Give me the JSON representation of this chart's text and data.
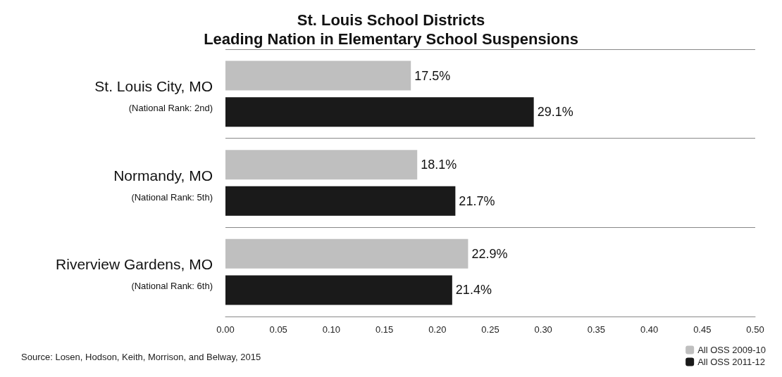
{
  "chart_data": {
    "type": "bar",
    "orientation": "horizontal",
    "title": "St. Louis School Districts\nLeading Nation in Elementary School Suspensions",
    "categories": [
      "St. Louis City, MO\n(National Rank: 2nd)",
      "Normandy, MO\n(National Rank: 5th)",
      "Riverview Gardens, MO\n(National Rank: 6th)"
    ],
    "series": [
      {
        "name": "All OSS 2009-10",
        "color": "#bfbfbf",
        "values": [
          0.175,
          0.181,
          0.229
        ],
        "value_labels": [
          "17.5%",
          "18.1%",
          "22.9%"
        ]
      },
      {
        "name": "All OSS 2011-12",
        "color": "#1a1a1a",
        "values": [
          0.291,
          0.217,
          0.214
        ],
        "value_labels": [
          "29.1%",
          "21.7%",
          "21.4%"
        ]
      }
    ],
    "xlim": [
      0,
      0.5
    ],
    "xticks": [
      {
        "value": 0,
        "label": "0.00"
      },
      {
        "value": 0.05,
        "label": "0.05"
      },
      {
        "value": 0.1,
        "label": "0.10"
      },
      {
        "value": 0.15,
        "label": "0.15"
      },
      {
        "value": 0.2,
        "label": "0.20"
      },
      {
        "value": 0.25,
        "label": "0.25"
      },
      {
        "value": 0.3,
        "label": "0.30"
      },
      {
        "value": 0.35,
        "label": "0.35"
      },
      {
        "value": 0.4,
        "label": "0.40"
      },
      {
        "value": 0.45,
        "label": "0.45"
      },
      {
        "value": 0.5,
        "label": "0.50"
      }
    ],
    "grid": "y",
    "legend": "bottom right",
    "annotations": [
      "Source: Losen, Hodson, Keith, Morrison, and Belway, 2015"
    ]
  }
}
